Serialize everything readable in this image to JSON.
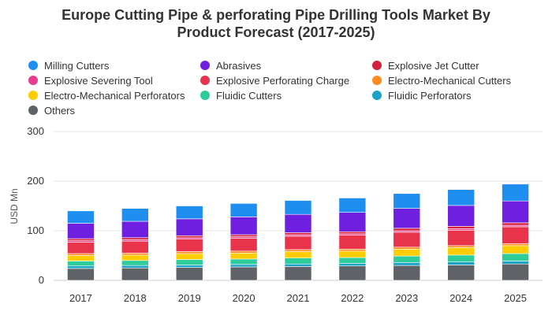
{
  "chart_data": {
    "type": "bar",
    "stacked": true,
    "title_line1": "Europe Cutting Pipe & perforating Pipe Drilling Tools Market By",
    "title_line2": "Product Forecast (2017-2025)",
    "xlabel": "",
    "ylabel": "USD Mn",
    "ylim": [
      0,
      300
    ],
    "yticks": [
      "0",
      "100",
      "200",
      "300"
    ],
    "grid": true,
    "legend_position": "top",
    "categories": [
      "2017",
      "2018",
      "2019",
      "2020",
      "2021",
      "2022",
      "2023",
      "2024",
      "2025"
    ],
    "series": [
      {
        "name": "Others",
        "color": "#5f6368",
        "values": [
          24,
          25,
          26,
          27,
          28,
          29,
          30,
          31,
          33
        ]
      },
      {
        "name": "Fluidic Perforators",
        "color": "#1aa3c6",
        "values": [
          5,
          5,
          5,
          5,
          5,
          5,
          6,
          6,
          6
        ]
      },
      {
        "name": "Fluidic Cutters",
        "color": "#2ecc9a",
        "values": [
          10,
          10,
          11,
          11,
          12,
          12,
          13,
          14,
          15
        ]
      },
      {
        "name": "Electro-Mechanical Perforators",
        "color": "#ffcc00",
        "values": [
          11,
          11,
          12,
          12,
          13,
          13,
          14,
          15,
          16
        ]
      },
      {
        "name": "Electro-Mechanical Cutters",
        "color": "#ff8a1f",
        "values": [
          4,
          4,
          4,
          4,
          4,
          4,
          4,
          4,
          4
        ]
      },
      {
        "name": "Explosive Perforating Charge",
        "color": "#e8334a",
        "values": [
          23,
          24,
          25,
          26,
          27,
          28,
          30,
          31,
          34
        ]
      },
      {
        "name": "Explosive Severing Tool",
        "color": "#e83d8f",
        "values": [
          3,
          3,
          3,
          3,
          3,
          3,
          3,
          3,
          3
        ]
      },
      {
        "name": "Explosive Jet Cutter",
        "color": "#d4213d",
        "values": [
          4,
          4,
          4,
          4,
          4,
          4,
          5,
          5,
          5
        ]
      },
      {
        "name": "Abrasives",
        "color": "#6f1fe0",
        "values": [
          31,
          33,
          34,
          36,
          37,
          39,
          40,
          42,
          44
        ]
      },
      {
        "name": "Milling Cutters",
        "color": "#1f8ef1",
        "values": [
          25,
          26,
          26,
          27,
          28,
          29,
          30,
          32,
          34
        ]
      }
    ]
  },
  "legend": [
    {
      "label": "Milling Cutters",
      "color": "#1f8ef1"
    },
    {
      "label": "Abrasives",
      "color": "#6f1fe0"
    },
    {
      "label": "Explosive Jet Cutter",
      "color": "#d4213d"
    },
    {
      "label": "Explosive Severing Tool",
      "color": "#e83d8f"
    },
    {
      "label": "Explosive Perforating Charge",
      "color": "#e8334a"
    },
    {
      "label": "Electro-Mechanical Cutters",
      "color": "#ff8a1f"
    },
    {
      "label": "Electro-Mechanical Perforators",
      "color": "#ffcc00"
    },
    {
      "label": "Fluidic Cutters",
      "color": "#2ecc9a"
    },
    {
      "label": "Fluidic Perforators",
      "color": "#1aa3c6"
    },
    {
      "label": "Others",
      "color": "#5f6368"
    }
  ]
}
